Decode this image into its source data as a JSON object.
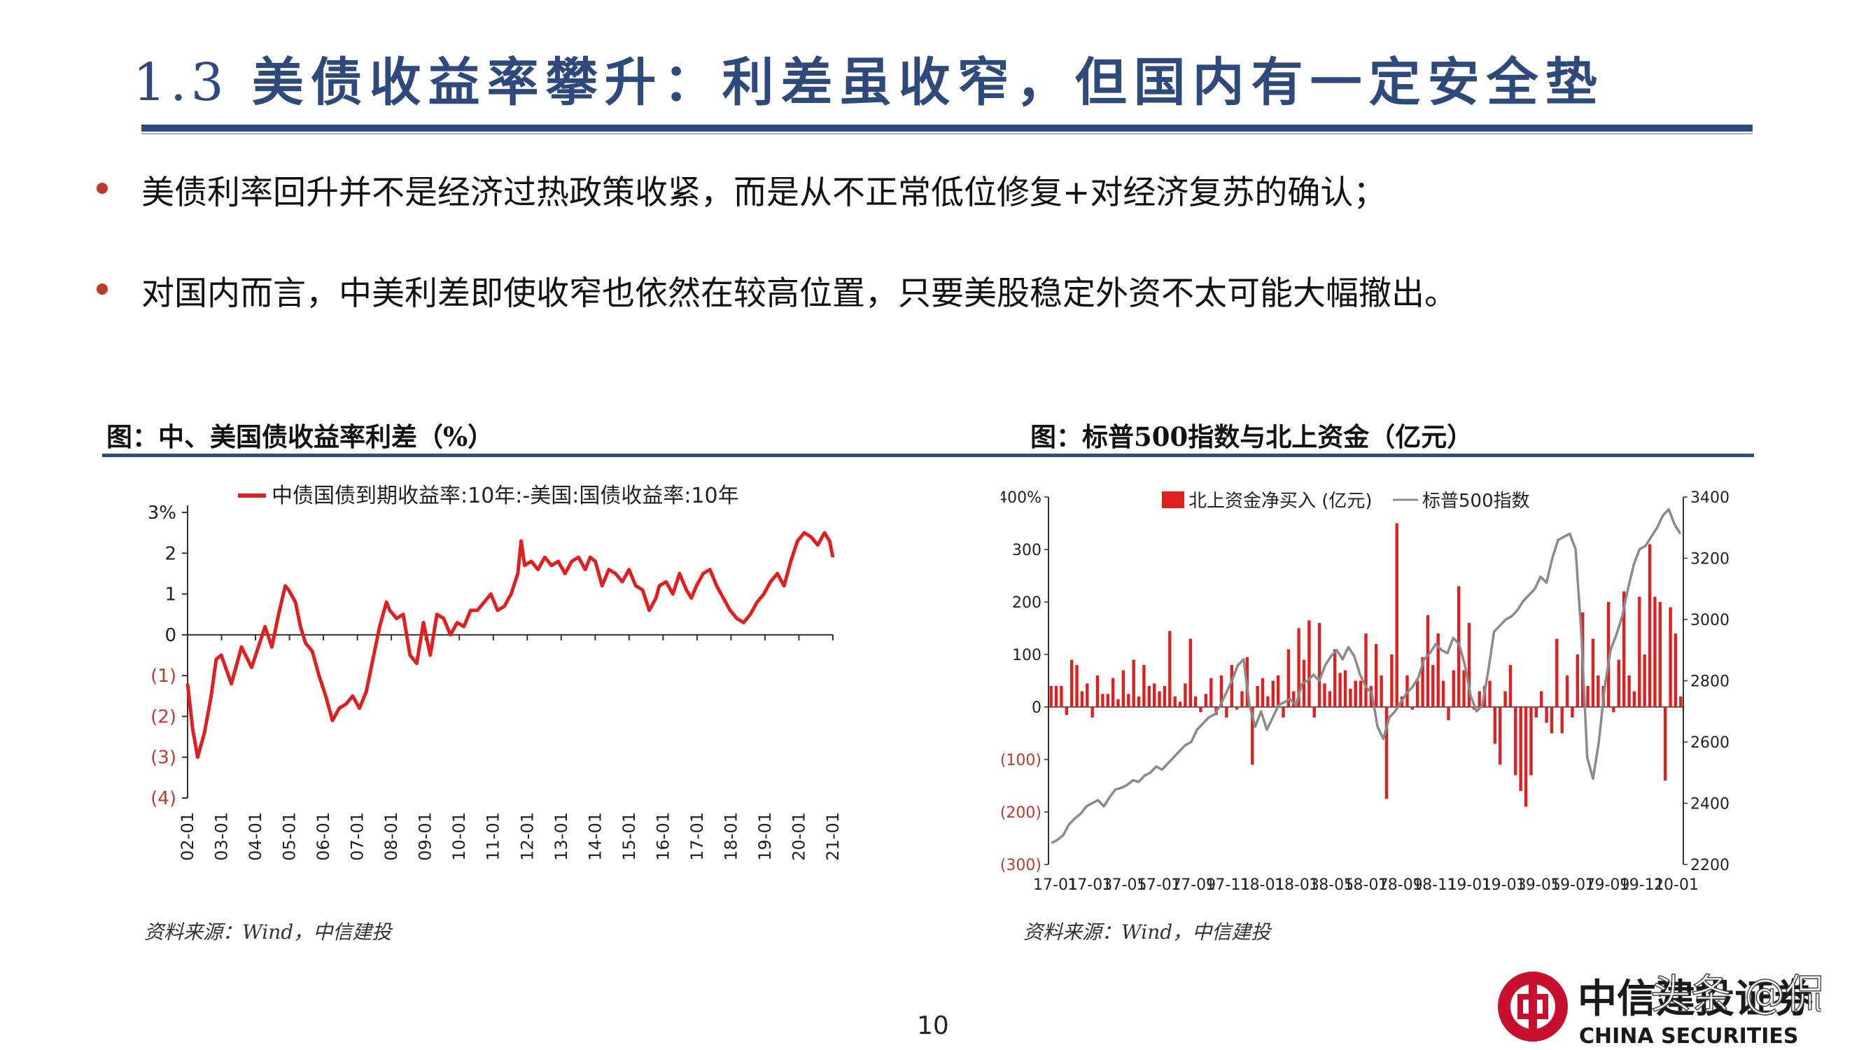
{
  "slide": {
    "section_number": "1.3",
    "title": "美债收益率攀升：利差虽收窄，但国内有一定安全垫",
    "bullets": [
      "美债利率回升并不是经济过热政策收紧，而是从不正常低位修复+对经济复苏的确认；",
      "对国内而言，中美利差即使收窄也依然在较高位置，只要美股稳定外资不太可能大幅撤出。"
    ],
    "page_number": "10",
    "brand": "CHINA SECURITIES",
    "brand_cn": "中信建投证券",
    "watermark": "头条 @侃侃说",
    "colors": {
      "accent": "#2b4b7e",
      "bullet": "#c0392b",
      "series_red": "#e02020",
      "series_gray": "#8a8a8a"
    }
  },
  "figures": {
    "fig1": {
      "title": "图：中、美国债收益率利差（%）",
      "source": "资料来源：Wind，中信建投"
    },
    "fig2": {
      "title": "图：标普500指数与北上资金（亿元）",
      "source": "资料来源：Wind，中信建投"
    }
  },
  "chart_data": [
    {
      "type": "line",
      "legend": [
        "中债国债到期收益率:10年:-美国:国债收益率:10年"
      ],
      "ylim": [
        -4,
        3
      ],
      "y_ticks": [
        "3%",
        "2",
        "1",
        "0",
        "(1)",
        "(2)",
        "(3)",
        "(4)"
      ],
      "x_ticks": [
        "02-01",
        "03-01",
        "04-01",
        "05-01",
        "06-01",
        "07-01",
        "08-01",
        "09-01",
        "10-01",
        "11-01",
        "12-01",
        "13-01",
        "14-01",
        "15-01",
        "16-01",
        "17-01",
        "18-01",
        "19-01",
        "20-01",
        "21-01"
      ],
      "grid": false,
      "legend_position": "top",
      "series": [
        {
          "name": "中债国债到期收益率:10年:-美国:国债收益率:10年",
          "x": [
            2002.0,
            2002.15,
            2002.3,
            2002.5,
            2002.7,
            2002.85,
            2003.0,
            2003.3,
            2003.6,
            2003.9,
            2004.1,
            2004.3,
            2004.5,
            2004.7,
            2004.9,
            2005.0,
            2005.2,
            2005.35,
            2005.5,
            2005.7,
            2005.9,
            2006.1,
            2006.3,
            2006.5,
            2006.7,
            2006.9,
            2007.1,
            2007.3,
            2007.5,
            2007.7,
            2007.9,
            2008.0,
            2008.2,
            2008.4,
            2008.6,
            2008.8,
            2008.9,
            2009.0,
            2009.2,
            2009.4,
            2009.6,
            2009.8,
            2010.0,
            2010.2,
            2010.4,
            2010.6,
            2010.8,
            2011.0,
            2011.2,
            2011.4,
            2011.6,
            2011.8,
            2011.9,
            2012.0,
            2012.2,
            2012.4,
            2012.6,
            2012.8,
            2013.0,
            2013.2,
            2013.4,
            2013.6,
            2013.8,
            2013.95,
            2014.1,
            2014.3,
            2014.5,
            2014.7,
            2014.9,
            2015.1,
            2015.3,
            2015.5,
            2015.7,
            2015.9,
            2016.0,
            2016.2,
            2016.4,
            2016.6,
            2016.8,
            2016.95,
            2017.1,
            2017.3,
            2017.5,
            2017.7,
            2017.9,
            2018.1,
            2018.3,
            2018.5,
            2018.7,
            2018.9,
            2019.1,
            2019.3,
            2019.5,
            2019.7,
            2019.9,
            2020.1,
            2020.3,
            2020.5,
            2020.7,
            2020.9,
            2021.05,
            2021.15
          ],
          "values": [
            -1.2,
            -2.3,
            -3.0,
            -2.4,
            -1.5,
            -0.6,
            -0.5,
            -1.2,
            -0.3,
            -0.8,
            -0.3,
            0.2,
            -0.3,
            0.5,
            1.2,
            1.1,
            0.8,
            0.2,
            -0.2,
            -0.4,
            -1.0,
            -1.5,
            -2.1,
            -1.8,
            -1.7,
            -1.5,
            -1.8,
            -1.4,
            -0.6,
            0.2,
            0.8,
            0.6,
            0.4,
            0.5,
            -0.5,
            -0.7,
            -0.2,
            0.3,
            -0.5,
            0.5,
            0.4,
            0.0,
            0.3,
            0.2,
            0.6,
            0.6,
            0.8,
            1.0,
            0.6,
            0.7,
            1.0,
            1.5,
            2.3,
            1.7,
            1.8,
            1.6,
            1.9,
            1.7,
            1.8,
            1.5,
            1.8,
            1.9,
            1.6,
            1.9,
            1.8,
            1.2,
            1.6,
            1.5,
            1.3,
            1.6,
            1.2,
            1.1,
            0.6,
            0.9,
            1.2,
            1.3,
            1.0,
            1.5,
            1.1,
            0.9,
            1.2,
            1.5,
            1.6,
            1.2,
            0.9,
            0.6,
            0.4,
            0.3,
            0.5,
            0.8,
            1.0,
            1.3,
            1.5,
            1.2,
            1.8,
            2.3,
            2.5,
            2.4,
            2.2,
            2.5,
            2.3,
            1.9
          ]
        }
      ]
    },
    {
      "type": "bar",
      "legend": [
        "北上资金净买入 (亿元)",
        "标普500指数"
      ],
      "legend_position": "top",
      "grid": false,
      "ylim_left": [
        -300,
        400
      ],
      "ylim_right": [
        2200,
        3400
      ],
      "y_left_ticks": [
        "400%",
        "300",
        "200",
        "100",
        "0",
        "(100)",
        "(200)",
        "(300)"
      ],
      "y_right_ticks": [
        "3400",
        "3200",
        "3000",
        "2800",
        "2600",
        "2400",
        "2200"
      ],
      "x_ticks": [
        "17-01",
        "17-03",
        "17-05",
        "17-07",
        "17-09",
        "17-11",
        "18-01",
        "18-03",
        "18-05",
        "18-07",
        "18-09",
        "18-11",
        "19-01",
        "19-03",
        "19-05",
        "19-07",
        "19-09",
        "19-11",
        "20-01"
      ],
      "series": [
        {
          "name": "北上资金净买入 (亿元)",
          "type": "bar",
          "values": [
            40,
            40,
            40,
            -15,
            90,
            80,
            30,
            45,
            -20,
            60,
            25,
            25,
            55,
            15,
            70,
            25,
            90,
            20,
            80,
            40,
            45,
            30,
            40,
            145,
            20,
            10,
            45,
            130,
            20,
            -10,
            25,
            55,
            -15,
            60,
            -20,
            80,
            -5,
            30,
            95,
            -110,
            40,
            55,
            20,
            50,
            60,
            -20,
            110,
            30,
            150,
            90,
            165,
            -20,
            160,
            45,
            30,
            110,
            65,
            70,
            35,
            50,
            50,
            140,
            40,
            120,
            60,
            -175,
            100,
            350,
            20,
            60,
            -5,
            50,
            95,
            175,
            80,
            140,
            50,
            -25,
            70,
            230,
            70,
            160,
            -5,
            30,
            40,
            50,
            -70,
            -110,
            30,
            80,
            -130,
            -160,
            -190,
            -130,
            -20,
            30,
            -30,
            -50,
            130,
            -50,
            60,
            -20,
            100,
            180,
            40,
            130,
            60,
            40,
            200,
            -10,
            90,
            220,
            60,
            30,
            210,
            100,
            310,
            210,
            200,
            -140,
            190,
            140,
            20
          ]
        },
        {
          "name": "标普500指数",
          "type": "line",
          "values": [
            2270,
            2280,
            2295,
            2330,
            2350,
            2365,
            2390,
            2400,
            2410,
            2390,
            2420,
            2445,
            2450,
            2460,
            2475,
            2470,
            2490,
            2500,
            2520,
            2510,
            2530,
            2550,
            2570,
            2590,
            2600,
            2640,
            2660,
            2680,
            2690,
            2720,
            2760,
            2800,
            2850,
            2870,
            2720,
            2650,
            2700,
            2640,
            2680,
            2720,
            2730,
            2740,
            2720,
            2790,
            2800,
            2820,
            2800,
            2850,
            2880,
            2900,
            2870,
            2910,
            2880,
            2820,
            2780,
            2760,
            2650,
            2610,
            2680,
            2700,
            2730,
            2760,
            2780,
            2810,
            2870,
            2890,
            2920,
            2900,
            2890,
            2940,
            2920,
            2850,
            2750,
            2700,
            2720,
            2830,
            2960,
            2980,
            3000,
            3010,
            3030,
            3060,
            3080,
            3100,
            3140,
            3120,
            3200,
            3260,
            3270,
            3280,
            3230,
            2950,
            2550,
            2480,
            2600,
            2780,
            2900,
            2950,
            3010,
            3100,
            3180,
            3230,
            3240,
            3270,
            3300,
            3340,
            3360,
            3310,
            3280
          ]
        }
      ]
    }
  ]
}
